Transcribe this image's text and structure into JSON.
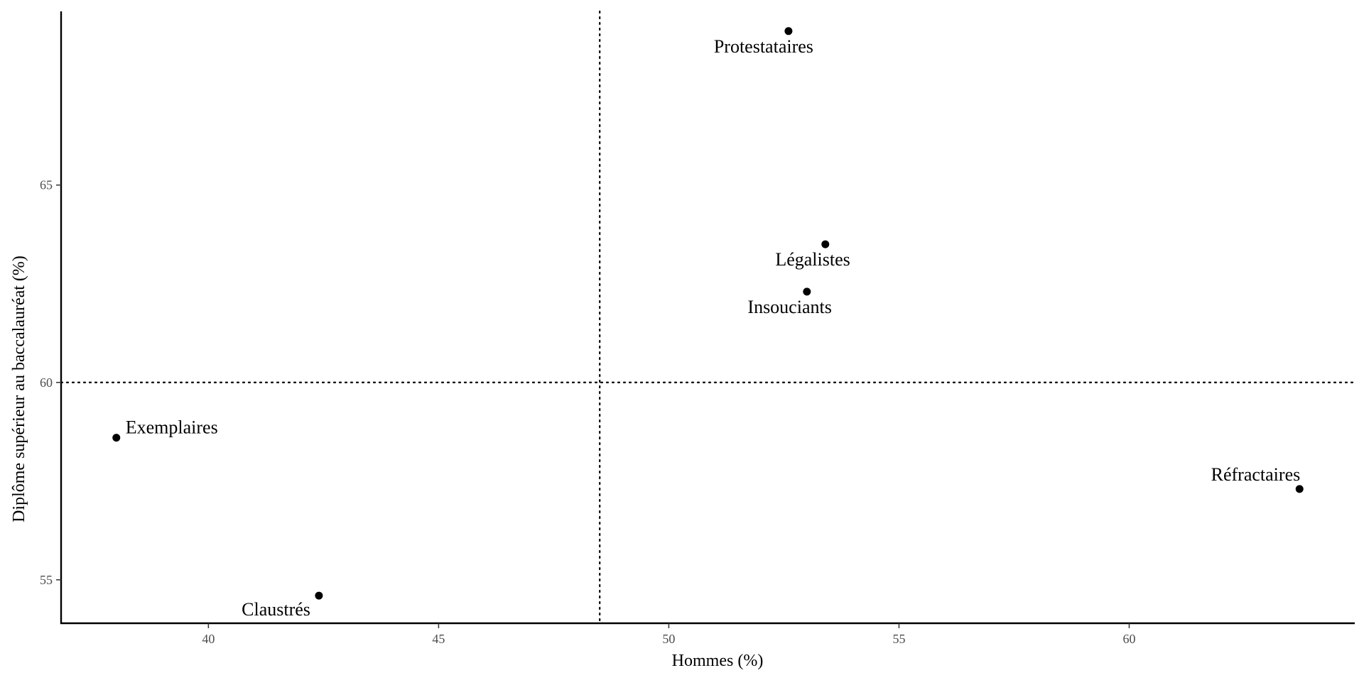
{
  "chart_data": {
    "type": "scatter",
    "title": "",
    "xlabel": "Hommes (%)",
    "ylabel": "Diplôme supérieur au baccalauréat (%)",
    "xlim": [
      36.8,
      64.9
    ],
    "ylim": [
      53.9,
      69.4
    ],
    "xticks": [
      40,
      45,
      50,
      55,
      60
    ],
    "yticks": [
      55,
      60,
      65
    ],
    "reference_lines": {
      "x": 48.5,
      "y": 60,
      "style": "dotted"
    },
    "grid": false,
    "points": [
      {
        "label": "Protestataires",
        "x": 52.6,
        "y": 68.9,
        "label_pos": "below-left"
      },
      {
        "label": "Légalistes",
        "x": 53.4,
        "y": 63.5,
        "label_pos": "below-left"
      },
      {
        "label": "Insouciants",
        "x": 53.0,
        "y": 62.3,
        "label_pos": "below-left"
      },
      {
        "label": "Exemplaires",
        "x": 38.0,
        "y": 58.6,
        "label_pos": "above-right"
      },
      {
        "label": "Réfractaires",
        "x": 63.7,
        "y": 57.3,
        "label_pos": "above-left"
      },
      {
        "label": "Claustrés",
        "x": 42.4,
        "y": 54.6,
        "label_pos": "below-left"
      }
    ]
  }
}
